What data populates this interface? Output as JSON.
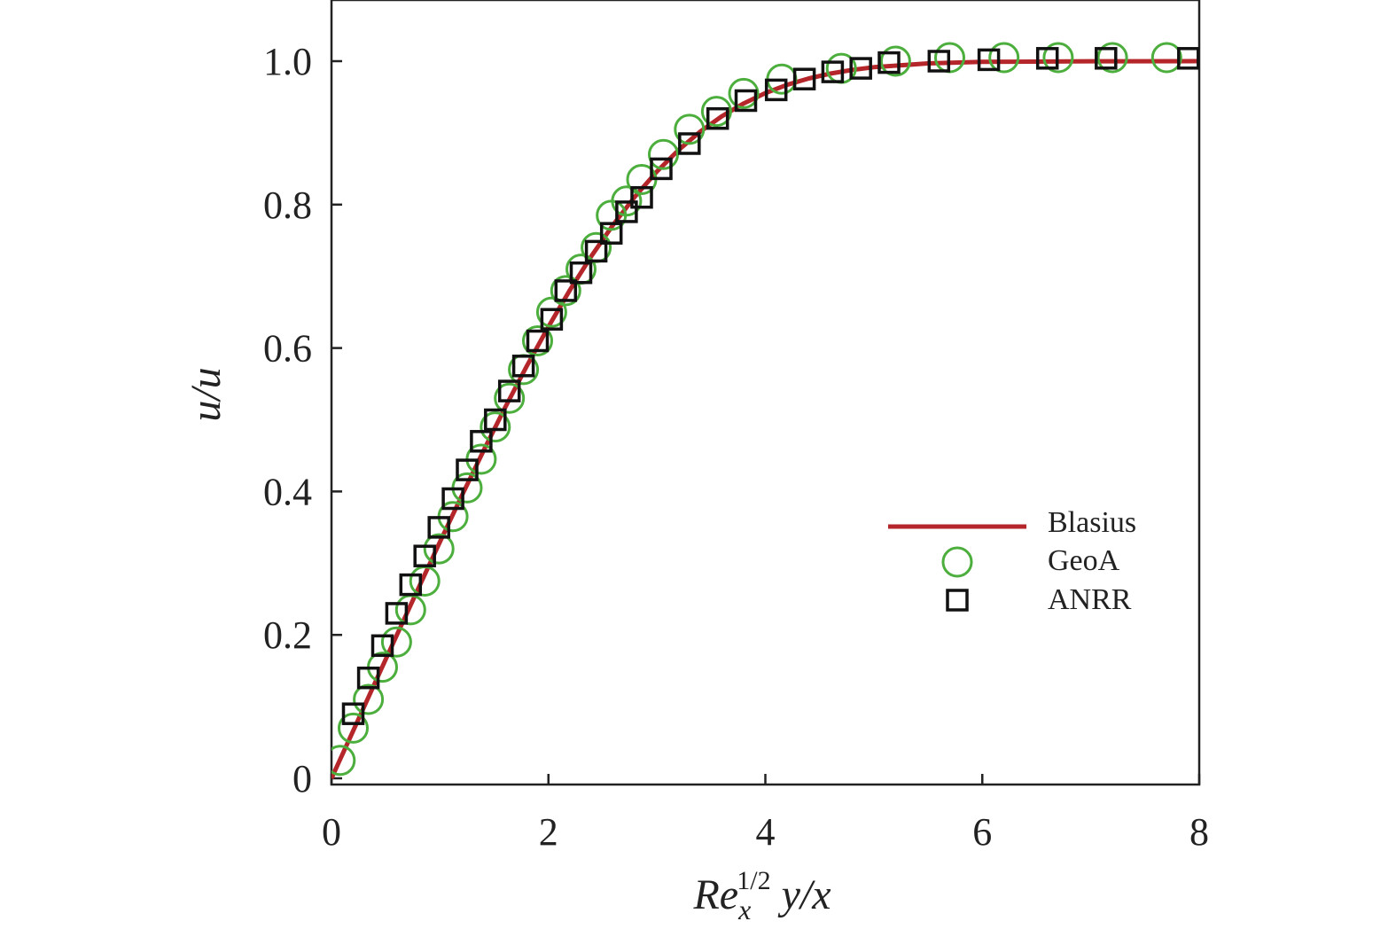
{
  "chart_data": {
    "type": "line",
    "xlabel": {
      "main": "Re",
      "sub": "x",
      "sup": "1/2",
      "tail": " y/x"
    },
    "ylabel": "u/u",
    "xlim": [
      0,
      8
    ],
    "ylim": [
      0,
      1.05
    ],
    "xticks": [
      0,
      2,
      4,
      6,
      8
    ],
    "xtick_labels": [
      "0",
      "2",
      "4",
      "6",
      "8"
    ],
    "yticks": [
      0,
      0.2,
      0.4,
      0.6,
      0.8,
      1.0
    ],
    "ytick_labels": [
      "0",
      "0.2",
      "0.4",
      "0.6",
      "0.8",
      "1.0"
    ],
    "legend_position": "center-right",
    "series": [
      {
        "name": "Blasius",
        "style": "line",
        "color": "#b5262b",
        "x": [
          0,
          0.2,
          0.4,
          0.6,
          0.8,
          1.0,
          1.2,
          1.4,
          1.6,
          1.8,
          2.0,
          2.2,
          2.4,
          2.6,
          2.8,
          3.0,
          3.2,
          3.4,
          3.6,
          3.8,
          4.0,
          4.2,
          4.4,
          4.6,
          4.8,
          5.0,
          5.5,
          6.0,
          7.0,
          8.0
        ],
        "y": [
          0,
          0.0664,
          0.1328,
          0.1989,
          0.2647,
          0.3298,
          0.3938,
          0.4563,
          0.5168,
          0.5748,
          0.6298,
          0.6813,
          0.729,
          0.7725,
          0.8115,
          0.8461,
          0.8761,
          0.9018,
          0.9233,
          0.9411,
          0.9555,
          0.967,
          0.9759,
          0.9827,
          0.9878,
          0.9916,
          0.9969,
          0.999,
          0.9999,
          1.0
        ]
      },
      {
        "name": "GeoA",
        "style": "circle",
        "color": "#4cae3c",
        "x": [
          0.08,
          0.2,
          0.34,
          0.47,
          0.6,
          0.73,
          0.86,
          0.99,
          1.12,
          1.25,
          1.38,
          1.51,
          1.64,
          1.77,
          1.9,
          2.03,
          2.16,
          2.3,
          2.44,
          2.58,
          2.72,
          2.86,
          3.06,
          3.3,
          3.55,
          3.8,
          4.15,
          4.7,
          5.2,
          5.7,
          6.2,
          6.7,
          7.2,
          7.7
        ],
        "y": [
          0.025,
          0.07,
          0.11,
          0.155,
          0.19,
          0.235,
          0.275,
          0.32,
          0.365,
          0.405,
          0.445,
          0.49,
          0.53,
          0.57,
          0.61,
          0.65,
          0.68,
          0.71,
          0.74,
          0.785,
          0.805,
          0.835,
          0.87,
          0.905,
          0.93,
          0.955,
          0.975,
          0.99,
          1.0,
          1.005,
          1.005,
          1.005,
          1.005,
          1.005
        ]
      },
      {
        "name": "ANRR",
        "style": "square",
        "color": "#111111",
        "x": [
          0.2,
          0.34,
          0.47,
          0.6,
          0.73,
          0.86,
          0.99,
          1.12,
          1.25,
          1.38,
          1.51,
          1.64,
          1.77,
          1.9,
          2.03,
          2.16,
          2.3,
          2.44,
          2.58,
          2.72,
          2.86,
          3.04,
          3.3,
          3.56,
          3.82,
          4.1,
          4.36,
          4.62,
          4.88,
          5.14,
          5.6,
          6.06,
          6.6,
          7.14,
          7.9
        ],
        "y": [
          0.09,
          0.14,
          0.185,
          0.23,
          0.27,
          0.31,
          0.35,
          0.39,
          0.43,
          0.47,
          0.5,
          0.54,
          0.575,
          0.61,
          0.64,
          0.68,
          0.705,
          0.735,
          0.76,
          0.79,
          0.81,
          0.85,
          0.885,
          0.92,
          0.945,
          0.96,
          0.975,
          0.985,
          0.99,
          0.998,
          1.0,
          1.002,
          1.004,
          1.004,
          1.004
        ]
      }
    ]
  }
}
